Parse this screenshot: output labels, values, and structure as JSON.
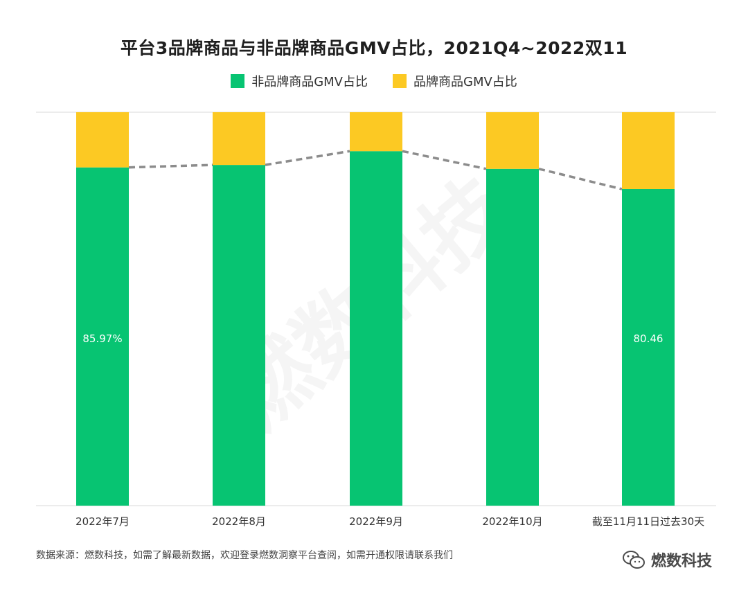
{
  "chart_data": {
    "type": "bar",
    "stacked": true,
    "percent": true,
    "title": "平台3品牌商品与非品牌商品GMV占比，2021Q4~2022双11",
    "categories": [
      "2022年7月",
      "2022年8月",
      "2022年9月",
      "2022年10月",
      "截至11月11日过去30天"
    ],
    "series": [
      {
        "name": "非品牌商品GMV占比",
        "color": "#07c472",
        "values": [
          85.97,
          86.6,
          90.1,
          85.6,
          80.46
        ]
      },
      {
        "name": "品牌商品GMV占比",
        "color": "#fcc923",
        "values": [
          14.03,
          13.4,
          9.9,
          14.4,
          19.54
        ]
      }
    ],
    "data_labels": [
      {
        "category_index": 0,
        "text": "85.97%"
      },
      {
        "category_index": 4,
        "text": "80.46"
      }
    ],
    "trend_line": {
      "series_index": 0,
      "style": "dashed",
      "color": "#8c8c8c"
    },
    "ylim": [
      0,
      100
    ],
    "xlabel": "",
    "ylabel": "",
    "grid": false,
    "legend_position": "top-center",
    "baseline_color": "#d9d9d9"
  },
  "footer": {
    "source_note": "数据来源：燃数科技，如需了解最新数据，欢迎登录燃数洞察平台查阅，如需开通权限请联系我们",
    "brand": "燃数科技"
  }
}
